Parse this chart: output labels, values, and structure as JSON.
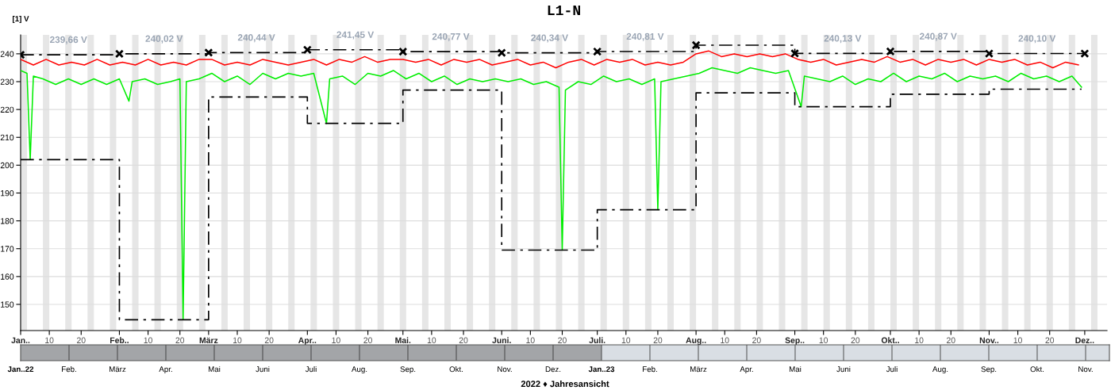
{
  "chart_data": [
    {
      "type": "line",
      "title": "L1-N",
      "ylabel": "[1] V",
      "xlim": [
        "2022-01-01",
        "2022-12-08"
      ],
      "ylim": [
        140.6,
        246.8
      ],
      "yticks": [
        150,
        160,
        170,
        180,
        190,
        200,
        210,
        220,
        230,
        240
      ],
      "xticks": [
        {
          "value": "2022-01-01",
          "label": "Jan.."
        },
        {
          "value": "2022-01-10",
          "label": "10"
        },
        {
          "value": "2022-01-20",
          "label": "20"
        },
        {
          "value": "2022-02-01",
          "label": "Feb.."
        },
        {
          "value": "2022-02-10",
          "label": "10"
        },
        {
          "value": "2022-02-20",
          "label": "20"
        },
        {
          "value": "2022-03-01",
          "label": "März"
        },
        {
          "value": "2022-03-10",
          "label": "10"
        },
        {
          "value": "2022-03-20",
          "label": "20"
        },
        {
          "value": "2022-04-01",
          "label": "Apr.."
        },
        {
          "value": "2022-04-10",
          "label": "10"
        },
        {
          "value": "2022-04-20",
          "label": "20"
        },
        {
          "value": "2022-05-01",
          "label": "Mai."
        },
        {
          "value": "2022-05-10",
          "label": "10"
        },
        {
          "value": "2022-05-20",
          "label": "20"
        },
        {
          "value": "2022-06-01",
          "label": "Juni."
        },
        {
          "value": "2022-06-10",
          "label": "10"
        },
        {
          "value": "2022-06-20",
          "label": "20"
        },
        {
          "value": "2022-07-01",
          "label": "Juli."
        },
        {
          "value": "2022-07-10",
          "label": "10"
        },
        {
          "value": "2022-07-20",
          "label": "20"
        },
        {
          "value": "2022-08-01",
          "label": "Aug.."
        },
        {
          "value": "2022-08-10",
          "label": "10"
        },
        {
          "value": "2022-08-20",
          "label": "20"
        },
        {
          "value": "2022-09-01",
          "label": "Sep.."
        },
        {
          "value": "2022-09-10",
          "label": "10"
        },
        {
          "value": "2022-09-20",
          "label": "20"
        },
        {
          "value": "2022-10-01",
          "label": "Okt.."
        },
        {
          "value": "2022-10-10",
          "label": "10"
        },
        {
          "value": "2022-10-20",
          "label": "20"
        },
        {
          "value": "2022-11-01",
          "label": "Nov.."
        },
        {
          "value": "2022-11-10",
          "label": "10"
        },
        {
          "value": "2022-11-20",
          "label": "20"
        },
        {
          "value": "2022-12-01",
          "label": "Dez.."
        }
      ],
      "grid": "y",
      "legend": false,
      "series": [
        {
          "color": "#ff0000",
          "x": [
            "2022-01-01",
            "2022-01-05",
            "2022-01-09",
            "2022-01-13",
            "2022-01-17",
            "2022-01-21",
            "2022-01-25",
            "2022-01-29",
            "2022-02-02",
            "2022-02-06",
            "2022-02-10",
            "2022-02-14",
            "2022-02-18",
            "2022-02-22",
            "2022-02-26",
            "2022-03-02",
            "2022-03-06",
            "2022-03-10",
            "2022-03-14",
            "2022-03-18",
            "2022-03-22",
            "2022-03-26",
            "2022-03-30",
            "2022-04-03",
            "2022-04-07",
            "2022-04-11",
            "2022-04-15",
            "2022-04-19",
            "2022-04-23",
            "2022-04-27",
            "2022-05-01",
            "2022-05-05",
            "2022-05-09",
            "2022-05-13",
            "2022-05-17",
            "2022-05-21",
            "2022-05-25",
            "2022-05-29",
            "2022-06-02",
            "2022-06-06",
            "2022-06-10",
            "2022-06-14",
            "2022-06-18",
            "2022-06-22",
            "2022-06-26",
            "2022-06-30",
            "2022-07-04",
            "2022-07-08",
            "2022-07-12",
            "2022-07-16",
            "2022-07-20",
            "2022-07-24",
            "2022-07-28",
            "2022-08-01",
            "2022-08-05",
            "2022-08-09",
            "2022-08-13",
            "2022-08-17",
            "2022-08-21",
            "2022-08-25",
            "2022-08-29",
            "2022-09-02",
            "2022-09-06",
            "2022-09-10",
            "2022-09-14",
            "2022-09-18",
            "2022-09-22",
            "2022-09-26",
            "2022-09-30",
            "2022-10-04",
            "2022-10-08",
            "2022-10-12",
            "2022-10-16",
            "2022-10-20",
            "2022-10-24",
            "2022-10-28",
            "2022-11-01",
            "2022-11-05",
            "2022-11-09",
            "2022-11-13",
            "2022-11-17",
            "2022-11-21",
            "2022-11-25",
            "2022-11-29"
          ],
          "values": [
            238,
            236,
            238,
            236,
            237,
            236,
            238,
            236,
            237,
            236,
            238,
            236,
            237,
            236,
            238,
            238,
            236,
            237,
            236,
            238,
            237,
            236,
            237,
            238,
            236,
            238,
            237,
            239,
            237,
            238,
            238,
            237,
            238,
            236,
            238,
            237,
            238,
            236,
            237,
            238,
            236,
            237,
            235,
            237,
            238,
            236,
            238,
            237,
            238,
            236,
            237,
            236,
            237,
            240,
            241,
            239,
            240,
            239,
            240,
            239,
            240,
            238,
            237,
            238,
            236,
            237,
            238,
            237,
            239,
            237,
            238,
            236,
            238,
            237,
            238,
            236,
            238,
            237,
            238,
            236,
            237,
            235,
            237,
            236
          ]
        },
        {
          "color": "#00ee00",
          "x": [
            "2022-01-01",
            "2022-01-03",
            "2022-01-04",
            "2022-01-05",
            "2022-01-08",
            "2022-01-12",
            "2022-01-16",
            "2022-01-20",
            "2022-01-24",
            "2022-01-28",
            "2022-02-01",
            "2022-02-04",
            "2022-02-05",
            "2022-02-09",
            "2022-02-13",
            "2022-02-17",
            "2022-02-20",
            "2022-02-21",
            "2022-02-22",
            "2022-02-26",
            "2022-03-02",
            "2022-03-06",
            "2022-03-10",
            "2022-03-14",
            "2022-03-18",
            "2022-03-22",
            "2022-03-26",
            "2022-03-30",
            "2022-04-03",
            "2022-04-07",
            "2022-04-08",
            "2022-04-12",
            "2022-04-16",
            "2022-04-20",
            "2022-04-24",
            "2022-04-28",
            "2022-05-02",
            "2022-05-06",
            "2022-05-10",
            "2022-05-14",
            "2022-05-18",
            "2022-05-22",
            "2022-05-26",
            "2022-05-30",
            "2022-06-03",
            "2022-06-07",
            "2022-06-11",
            "2022-06-15",
            "2022-06-19",
            "2022-06-20",
            "2022-06-21",
            "2022-06-25",
            "2022-06-29",
            "2022-07-03",
            "2022-07-07",
            "2022-07-11",
            "2022-07-15",
            "2022-07-19",
            "2022-07-20",
            "2022-07-21",
            "2022-07-25",
            "2022-07-29",
            "2022-08-02",
            "2022-08-06",
            "2022-08-10",
            "2022-08-14",
            "2022-08-18",
            "2022-08-22",
            "2022-08-26",
            "2022-08-30",
            "2022-09-03",
            "2022-09-04",
            "2022-09-08",
            "2022-09-12",
            "2022-09-16",
            "2022-09-20",
            "2022-09-24",
            "2022-09-28",
            "2022-10-02",
            "2022-10-06",
            "2022-10-10",
            "2022-10-14",
            "2022-10-18",
            "2022-10-22",
            "2022-10-26",
            "2022-10-30",
            "2022-11-03",
            "2022-11-07",
            "2022-11-11",
            "2022-11-15",
            "2022-11-19",
            "2022-11-23",
            "2022-11-27",
            "2022-11-30"
          ],
          "values": [
            234,
            233,
            202,
            232,
            231,
            229,
            231,
            229,
            231,
            229,
            231,
            223,
            230,
            231,
            229,
            230,
            231,
            144.5,
            230,
            231,
            233,
            230,
            232,
            229,
            233,
            231,
            233,
            232,
            233,
            215,
            231,
            232,
            229,
            233,
            232,
            234,
            231,
            233,
            230,
            232,
            229,
            231,
            230,
            231,
            230,
            231,
            229,
            230,
            228,
            169.5,
            227,
            230,
            229,
            232,
            230,
            231,
            229,
            231,
            184,
            230,
            231,
            232,
            233,
            235,
            234,
            233,
            235,
            234,
            233,
            234,
            221,
            232,
            231,
            230,
            232,
            229,
            231,
            230,
            233,
            230,
            232,
            231,
            233,
            230,
            232,
            231,
            232,
            230,
            233,
            231,
            232,
            230,
            232,
            228
          ]
        },
        {
          "type": "step",
          "color": "#000000",
          "marker": "cross",
          "line_style": "dashed",
          "x": [
            "2022-01-01",
            "2022-02-01",
            "2022-03-01",
            "2022-04-01",
            "2022-05-01",
            "2022-06-01",
            "2022-07-01",
            "2022-08-01",
            "2022-09-01",
            "2022-10-01",
            "2022-11-01",
            "2022-12-01"
          ],
          "values": [
            239.66,
            240.02,
            240.44,
            241.45,
            240.77,
            240.34,
            240.81,
            243.1,
            240.13,
            240.87,
            240.1,
            240.1
          ]
        },
        {
          "type": "step",
          "color": "#000000",
          "marker": "none",
          "line_style": "dashed",
          "x": [
            "2022-01-01",
            "2022-02-01",
            "2022-03-01",
            "2022-04-01",
            "2022-05-01",
            "2022-06-01",
            "2022-07-01",
            "2022-08-01",
            "2022-09-01",
            "2022-10-01",
            "2022-11-01",
            "2022-11-30"
          ],
          "values": [
            202,
            144.5,
            224.5,
            215,
            227,
            169.5,
            184,
            226,
            221,
            225.5,
            227.3,
            227.3
          ]
        }
      ],
      "annotations": [
        {
          "text": "239,66 V",
          "x": "2022-01-16",
          "y": 239.66
        },
        {
          "text": "240,02 V",
          "x": "2022-02-15",
          "y": 240.02
        },
        {
          "text": "240,44 V",
          "x": "2022-03-16",
          "y": 240.44
        },
        {
          "text": "241,45 V",
          "x": "2022-04-16",
          "y": 241.45
        },
        {
          "text": "240,77 V",
          "x": "2022-05-16",
          "y": 240.77
        },
        {
          "text": "240,34 V",
          "x": "2022-06-16",
          "y": 240.34
        },
        {
          "text": "240,81 V",
          "x": "2022-07-16",
          "y": 240.81
        },
        {
          "text": "240,13 V",
          "x": "2022-09-16",
          "y": 240.13
        },
        {
          "text": "240,87 V",
          "x": "2022-10-16",
          "y": 240.87
        },
        {
          "text": "240,10 V",
          "x": "2022-11-16",
          "y": 240.1
        }
      ],
      "bands": [
        {
          "axis": "x",
          "from": "2022-01-01",
          "to": "2022-01-03",
          "color": "#e6e6e6"
        },
        {
          "axis": "x",
          "from": "2022-01-08",
          "to": "2022-01-10",
          "color": "#e6e6e6"
        },
        {
          "axis": "x",
          "from": "2022-01-15",
          "to": "2022-01-17",
          "color": "#e6e6e6"
        },
        {
          "axis": "x",
          "from": "2022-01-22",
          "to": "2022-01-24",
          "color": "#e6e6e6"
        },
        {
          "axis": "x",
          "from": "2022-01-29",
          "to": "2022-01-31",
          "color": "#e6e6e6"
        },
        {
          "axis": "x",
          "from": "2022-02-05",
          "to": "2022-02-07",
          "color": "#e6e6e6"
        },
        {
          "axis": "x",
          "from": "2022-02-12",
          "to": "2022-02-14",
          "color": "#e6e6e6"
        },
        {
          "axis": "x",
          "from": "2022-02-19",
          "to": "2022-02-21",
          "color": "#e6e6e6"
        },
        {
          "axis": "x",
          "from": "2022-02-26",
          "to": "2022-02-28",
          "color": "#e6e6e6"
        },
        {
          "axis": "x",
          "from": "2022-03-05",
          "to": "2022-03-07",
          "color": "#e6e6e6"
        },
        {
          "axis": "x",
          "from": "2022-03-12",
          "to": "2022-03-14",
          "color": "#e6e6e6"
        },
        {
          "axis": "x",
          "from": "2022-03-19",
          "to": "2022-03-21",
          "color": "#e6e6e6"
        },
        {
          "axis": "x",
          "from": "2022-03-26",
          "to": "2022-03-28",
          "color": "#e6e6e6"
        },
        {
          "axis": "x",
          "from": "2022-04-02",
          "to": "2022-04-04",
          "color": "#e6e6e6"
        },
        {
          "axis": "x",
          "from": "2022-04-09",
          "to": "2022-04-11",
          "color": "#e6e6e6"
        },
        {
          "axis": "x",
          "from": "2022-04-16",
          "to": "2022-04-18",
          "color": "#e6e6e6"
        },
        {
          "axis": "x",
          "from": "2022-04-23",
          "to": "2022-04-25",
          "color": "#e6e6e6"
        },
        {
          "axis": "x",
          "from": "2022-04-30",
          "to": "2022-05-02",
          "color": "#e6e6e6"
        },
        {
          "axis": "x",
          "from": "2022-05-07",
          "to": "2022-05-09",
          "color": "#e6e6e6"
        },
        {
          "axis": "x",
          "from": "2022-05-14",
          "to": "2022-05-16",
          "color": "#e6e6e6"
        },
        {
          "axis": "x",
          "from": "2022-05-21",
          "to": "2022-05-23",
          "color": "#e6e6e6"
        },
        {
          "axis": "x",
          "from": "2022-05-28",
          "to": "2022-05-30",
          "color": "#e6e6e6"
        },
        {
          "axis": "x",
          "from": "2022-06-04",
          "to": "2022-06-06",
          "color": "#e6e6e6"
        },
        {
          "axis": "x",
          "from": "2022-06-11",
          "to": "2022-06-13",
          "color": "#e6e6e6"
        },
        {
          "axis": "x",
          "from": "2022-06-18",
          "to": "2022-06-20",
          "color": "#e6e6e6"
        },
        {
          "axis": "x",
          "from": "2022-06-25",
          "to": "2022-06-27",
          "color": "#e6e6e6"
        },
        {
          "axis": "x",
          "from": "2022-07-02",
          "to": "2022-07-04",
          "color": "#e6e6e6"
        },
        {
          "axis": "x",
          "from": "2022-07-09",
          "to": "2022-07-11",
          "color": "#e6e6e6"
        },
        {
          "axis": "x",
          "from": "2022-07-16",
          "to": "2022-07-18",
          "color": "#e6e6e6"
        },
        {
          "axis": "x",
          "from": "2022-07-23",
          "to": "2022-07-25",
          "color": "#e6e6e6"
        },
        {
          "axis": "x",
          "from": "2022-07-30",
          "to": "2022-08-01",
          "color": "#e6e6e6"
        },
        {
          "axis": "x",
          "from": "2022-08-06",
          "to": "2022-08-08",
          "color": "#e6e6e6"
        },
        {
          "axis": "x",
          "from": "2022-08-13",
          "to": "2022-08-15",
          "color": "#e6e6e6"
        },
        {
          "axis": "x",
          "from": "2022-08-20",
          "to": "2022-08-22",
          "color": "#e6e6e6"
        },
        {
          "axis": "x",
          "from": "2022-08-27",
          "to": "2022-08-29",
          "color": "#e6e6e6"
        },
        {
          "axis": "x",
          "from": "2022-09-03",
          "to": "2022-09-05",
          "color": "#e6e6e6"
        },
        {
          "axis": "x",
          "from": "2022-09-10",
          "to": "2022-09-12",
          "color": "#e6e6e6"
        },
        {
          "axis": "x",
          "from": "2022-09-17",
          "to": "2022-09-19",
          "color": "#e6e6e6"
        },
        {
          "axis": "x",
          "from": "2022-09-24",
          "to": "2022-09-26",
          "color": "#e6e6e6"
        },
        {
          "axis": "x",
          "from": "2022-10-01",
          "to": "2022-10-03",
          "color": "#e6e6e6"
        },
        {
          "axis": "x",
          "from": "2022-10-08",
          "to": "2022-10-10",
          "color": "#e6e6e6"
        },
        {
          "axis": "x",
          "from": "2022-10-15",
          "to": "2022-10-17",
          "color": "#e6e6e6"
        },
        {
          "axis": "x",
          "from": "2022-10-22",
          "to": "2022-10-24",
          "color": "#e6e6e6"
        },
        {
          "axis": "x",
          "from": "2022-10-29",
          "to": "2022-10-31",
          "color": "#e6e6e6"
        },
        {
          "axis": "x",
          "from": "2022-11-05",
          "to": "2022-11-07",
          "color": "#e6e6e6"
        },
        {
          "axis": "x",
          "from": "2022-11-12",
          "to": "2022-11-14",
          "color": "#e6e6e6"
        },
        {
          "axis": "x",
          "from": "2022-11-19",
          "to": "2022-11-21",
          "color": "#e6e6e6"
        },
        {
          "axis": "x",
          "from": "2022-11-26",
          "to": "2022-11-28",
          "color": "#e6e6e6"
        },
        {
          "axis": "x",
          "from": "2022-12-03",
          "to": "2022-12-05",
          "color": "#e6e6e6"
        }
      ]
    },
    {
      "type": "other",
      "xlabel": "2022 ♦ Jahresansicht",
      "annotations": [
        "Jan..22",
        "Feb.",
        "März",
        "Apr.",
        "Mai",
        "Juni",
        "Juli",
        "Aug.",
        "Sep.",
        "Okt.",
        "Nov.",
        "Dez.",
        "Jan..23",
        "Feb.",
        "März",
        "Apr.",
        "Mai",
        "Juni",
        "Juli",
        "Aug.",
        "Sep.",
        "Okt.",
        "Nov."
      ]
    }
  ]
}
